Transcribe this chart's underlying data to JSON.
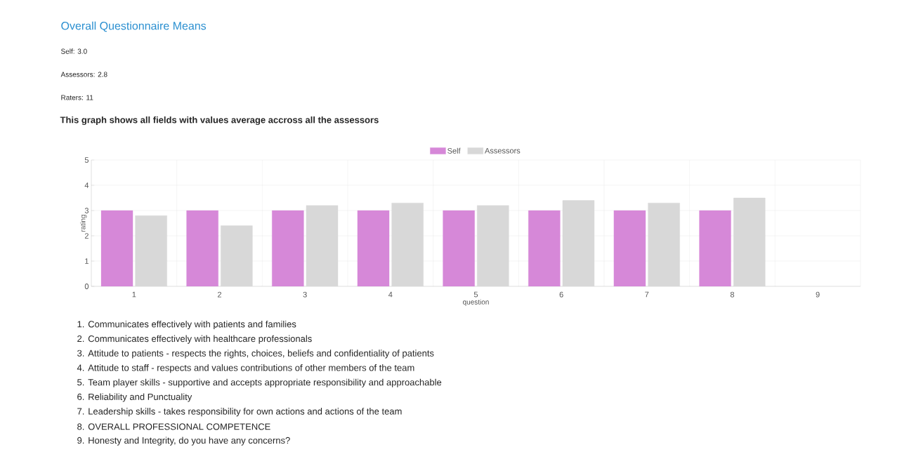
{
  "chart_data": {
    "type": "bar",
    "title": "Overall Questionnaire Means",
    "subtitle": "This graph shows all fields with values average accross all the assessors",
    "xlabel": "question",
    "ylabel": "rating",
    "categories": [
      "1",
      "2",
      "3",
      "4",
      "5",
      "6",
      "7",
      "8",
      "9"
    ],
    "series": [
      {
        "name": "Self",
        "color": "#d688d8",
        "values": [
          3,
          3,
          3,
          3,
          3,
          3,
          3,
          3,
          null
        ]
      },
      {
        "name": "Assessors",
        "color": "#d8d8d8",
        "values": [
          2.8,
          2.4,
          3.2,
          3.3,
          3.2,
          3.4,
          3.3,
          3.5,
          null
        ]
      }
    ],
    "ylim": [
      0,
      5
    ],
    "yticks": [
      0,
      1,
      2,
      3,
      4,
      5
    ],
    "grid": true,
    "legend": "top",
    "annotations": [
      "Self: 3.0",
      "Assessors: 2.8",
      "Raters: 11",
      "1. Communicates effectively with patients and families",
      "2. Communicates effectively with healthcare professionals",
      "3. Attitude to patients - respects the rights, choices, beliefs and confidentiality of patients",
      "4. Attitude to staff - respects and values contributions of other members of the team",
      "5. Team player skills - supportive and accepts appropriate responsibility and approachable",
      "6. Reliability and Punctuality",
      "7. Leadership skills - takes responsibility for own actions and actions of the team",
      "8. OVERALL PROFESSIONAL COMPETENCE",
      "9. Honesty and Integrity, do you have any concerns?"
    ]
  }
}
